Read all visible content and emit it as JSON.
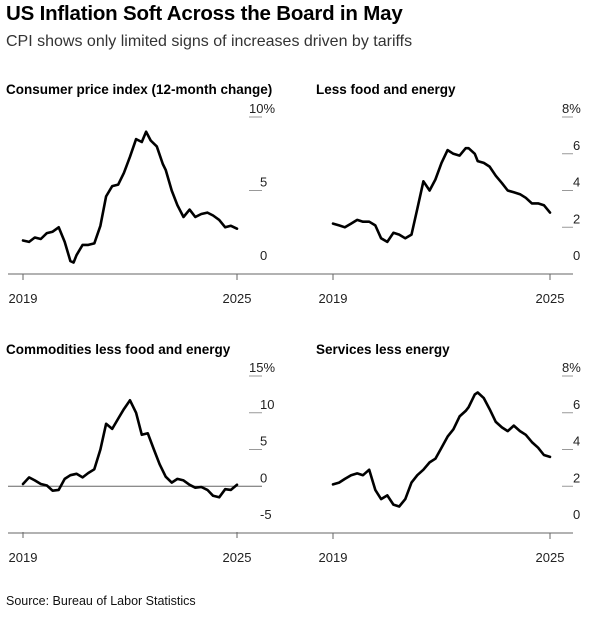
{
  "title": "US Inflation Soft Across the Board in May",
  "subtitle": "CPI shows only limited signs of increases driven by tariffs",
  "source": "Source: Bureau of Labor Statistics",
  "chart_data": [
    {
      "type": "line",
      "title": "Consumer price index (12-month change)",
      "ylim": [
        0,
        10
      ],
      "yticks": [
        0,
        5,
        10
      ],
      "ytick_labels": [
        "0",
        "5",
        "10%"
      ],
      "xlim": [
        2019,
        2025.6
      ],
      "xticks": [
        2019,
        2025
      ],
      "xtick_labels": [
        "2019",
        "2025"
      ],
      "grid": "horizontal at ticks",
      "x": [
        2019.0,
        2019.17,
        2019.33,
        2019.5,
        2019.67,
        2019.83,
        2020.0,
        2020.17,
        2020.33,
        2020.42,
        2020.5,
        2020.67,
        2020.83,
        2021.0,
        2021.17,
        2021.33,
        2021.5,
        2021.67,
        2021.83,
        2022.0,
        2022.17,
        2022.33,
        2022.45,
        2022.58,
        2022.75,
        2022.92,
        2023.0,
        2023.17,
        2023.33,
        2023.5,
        2023.67,
        2023.83,
        2024.0,
        2024.17,
        2024.33,
        2024.5,
        2024.67,
        2024.83,
        2025.0
      ],
      "y": [
        1.6,
        1.5,
        1.8,
        1.7,
        2.1,
        2.2,
        2.5,
        1.5,
        0.2,
        0.1,
        0.6,
        1.3,
        1.3,
        1.4,
        2.6,
        4.6,
        5.3,
        5.4,
        6.2,
        7.3,
        8.5,
        8.3,
        9.0,
        8.4,
        8.0,
        6.8,
        6.4,
        5.0,
        4.0,
        3.2,
        3.7,
        3.2,
        3.4,
        3.5,
        3.3,
        3.0,
        2.5,
        2.6,
        2.4
      ]
    },
    {
      "type": "line",
      "title": "Less food and energy",
      "ylim": [
        0,
        8
      ],
      "yticks": [
        0,
        2,
        4,
        6,
        8
      ],
      "ytick_labels": [
        "0",
        "2",
        "4",
        "6",
        "8%"
      ],
      "xlim": [
        2019,
        2025.6
      ],
      "xticks": [
        2019,
        2025
      ],
      "xtick_labels": [
        "2019",
        "2025"
      ],
      "grid": "horizontal at ticks",
      "x": [
        2019.0,
        2019.17,
        2019.33,
        2019.5,
        2019.67,
        2019.83,
        2020.0,
        2020.17,
        2020.33,
        2020.5,
        2020.67,
        2020.83,
        2021.0,
        2021.17,
        2021.33,
        2021.5,
        2021.67,
        2021.83,
        2022.0,
        2022.17,
        2022.33,
        2022.5,
        2022.67,
        2022.75,
        2022.92,
        2023.0,
        2023.17,
        2023.33,
        2023.5,
        2023.67,
        2023.83,
        2024.0,
        2024.17,
        2024.33,
        2024.5,
        2024.67,
        2024.83,
        2025.0
      ],
      "y": [
        2.2,
        2.1,
        2.0,
        2.2,
        2.4,
        2.3,
        2.3,
        2.1,
        1.4,
        1.2,
        1.7,
        1.6,
        1.4,
        1.6,
        3.0,
        4.5,
        4.0,
        4.6,
        5.5,
        6.2,
        6.0,
        5.9,
        6.3,
        6.3,
        6.0,
        5.6,
        5.5,
        5.3,
        4.8,
        4.4,
        4.0,
        3.9,
        3.8,
        3.6,
        3.3,
        3.3,
        3.2,
        2.8
      ]
    },
    {
      "type": "line",
      "title": "Commodities less food and energy",
      "ylim": [
        -5,
        15
      ],
      "yticks": [
        -5,
        0,
        5,
        10,
        15
      ],
      "ytick_labels": [
        "-5",
        "0",
        "5",
        "10",
        "15%"
      ],
      "xlim": [
        2019,
        2025.6
      ],
      "xticks": [
        2019,
        2025
      ],
      "xtick_labels": [
        "2019",
        "2025"
      ],
      "grid": "zero line",
      "x": [
        2019.0,
        2019.17,
        2019.33,
        2019.5,
        2019.67,
        2019.83,
        2020.0,
        2020.17,
        2020.33,
        2020.5,
        2020.67,
        2020.83,
        2021.0,
        2021.17,
        2021.33,
        2021.5,
        2021.67,
        2021.83,
        2022.0,
        2022.17,
        2022.33,
        2022.5,
        2022.67,
        2022.83,
        2023.0,
        2023.17,
        2023.33,
        2023.5,
        2023.67,
        2023.83,
        2024.0,
        2024.17,
        2024.33,
        2024.5,
        2024.67,
        2024.83,
        2025.0
      ],
      "y": [
        0.3,
        1.2,
        0.8,
        0.3,
        0.1,
        -0.6,
        -0.5,
        1.0,
        1.5,
        1.7,
        1.2,
        1.8,
        2.3,
        5.0,
        8.5,
        7.8,
        9.2,
        10.5,
        11.7,
        10.0,
        7.0,
        7.2,
        5.0,
        3.0,
        1.3,
        0.5,
        1.0,
        0.8,
        0.2,
        -0.2,
        -0.1,
        -0.5,
        -1.3,
        -1.5,
        -0.4,
        -0.5,
        0.2
      ]
    },
    {
      "type": "line",
      "title": "Services less energy",
      "ylim": [
        0,
        8
      ],
      "yticks": [
        0,
        2,
        4,
        6,
        8
      ],
      "ytick_labels": [
        "0",
        "2",
        "4",
        "6",
        "8%"
      ],
      "xlim": [
        2019,
        2025.6
      ],
      "xticks": [
        2019,
        2025
      ],
      "xtick_labels": [
        "2019",
        "2025"
      ],
      "grid": "horizontal at ticks",
      "x": [
        2019.0,
        2019.17,
        2019.33,
        2019.5,
        2019.67,
        2019.83,
        2020.0,
        2020.17,
        2020.33,
        2020.5,
        2020.67,
        2020.83,
        2021.0,
        2021.17,
        2021.33,
        2021.5,
        2021.67,
        2021.83,
        2022.0,
        2022.17,
        2022.33,
        2022.5,
        2022.67,
        2022.75,
        2022.92,
        2023.0,
        2023.17,
        2023.33,
        2023.5,
        2023.67,
        2023.83,
        2024.0,
        2024.17,
        2024.33,
        2024.5,
        2024.67,
        2024.83,
        2025.0
      ],
      "y": [
        2.1,
        2.2,
        2.4,
        2.6,
        2.7,
        2.6,
        2.9,
        1.8,
        1.3,
        1.5,
        1.0,
        0.9,
        1.3,
        2.2,
        2.6,
        2.9,
        3.3,
        3.5,
        4.1,
        4.7,
        5.1,
        5.8,
        6.1,
        6.3,
        7.0,
        7.1,
        6.8,
        6.2,
        5.5,
        5.2,
        5.0,
        5.3,
        5.0,
        4.8,
        4.4,
        4.1,
        3.7,
        3.6
      ]
    }
  ]
}
